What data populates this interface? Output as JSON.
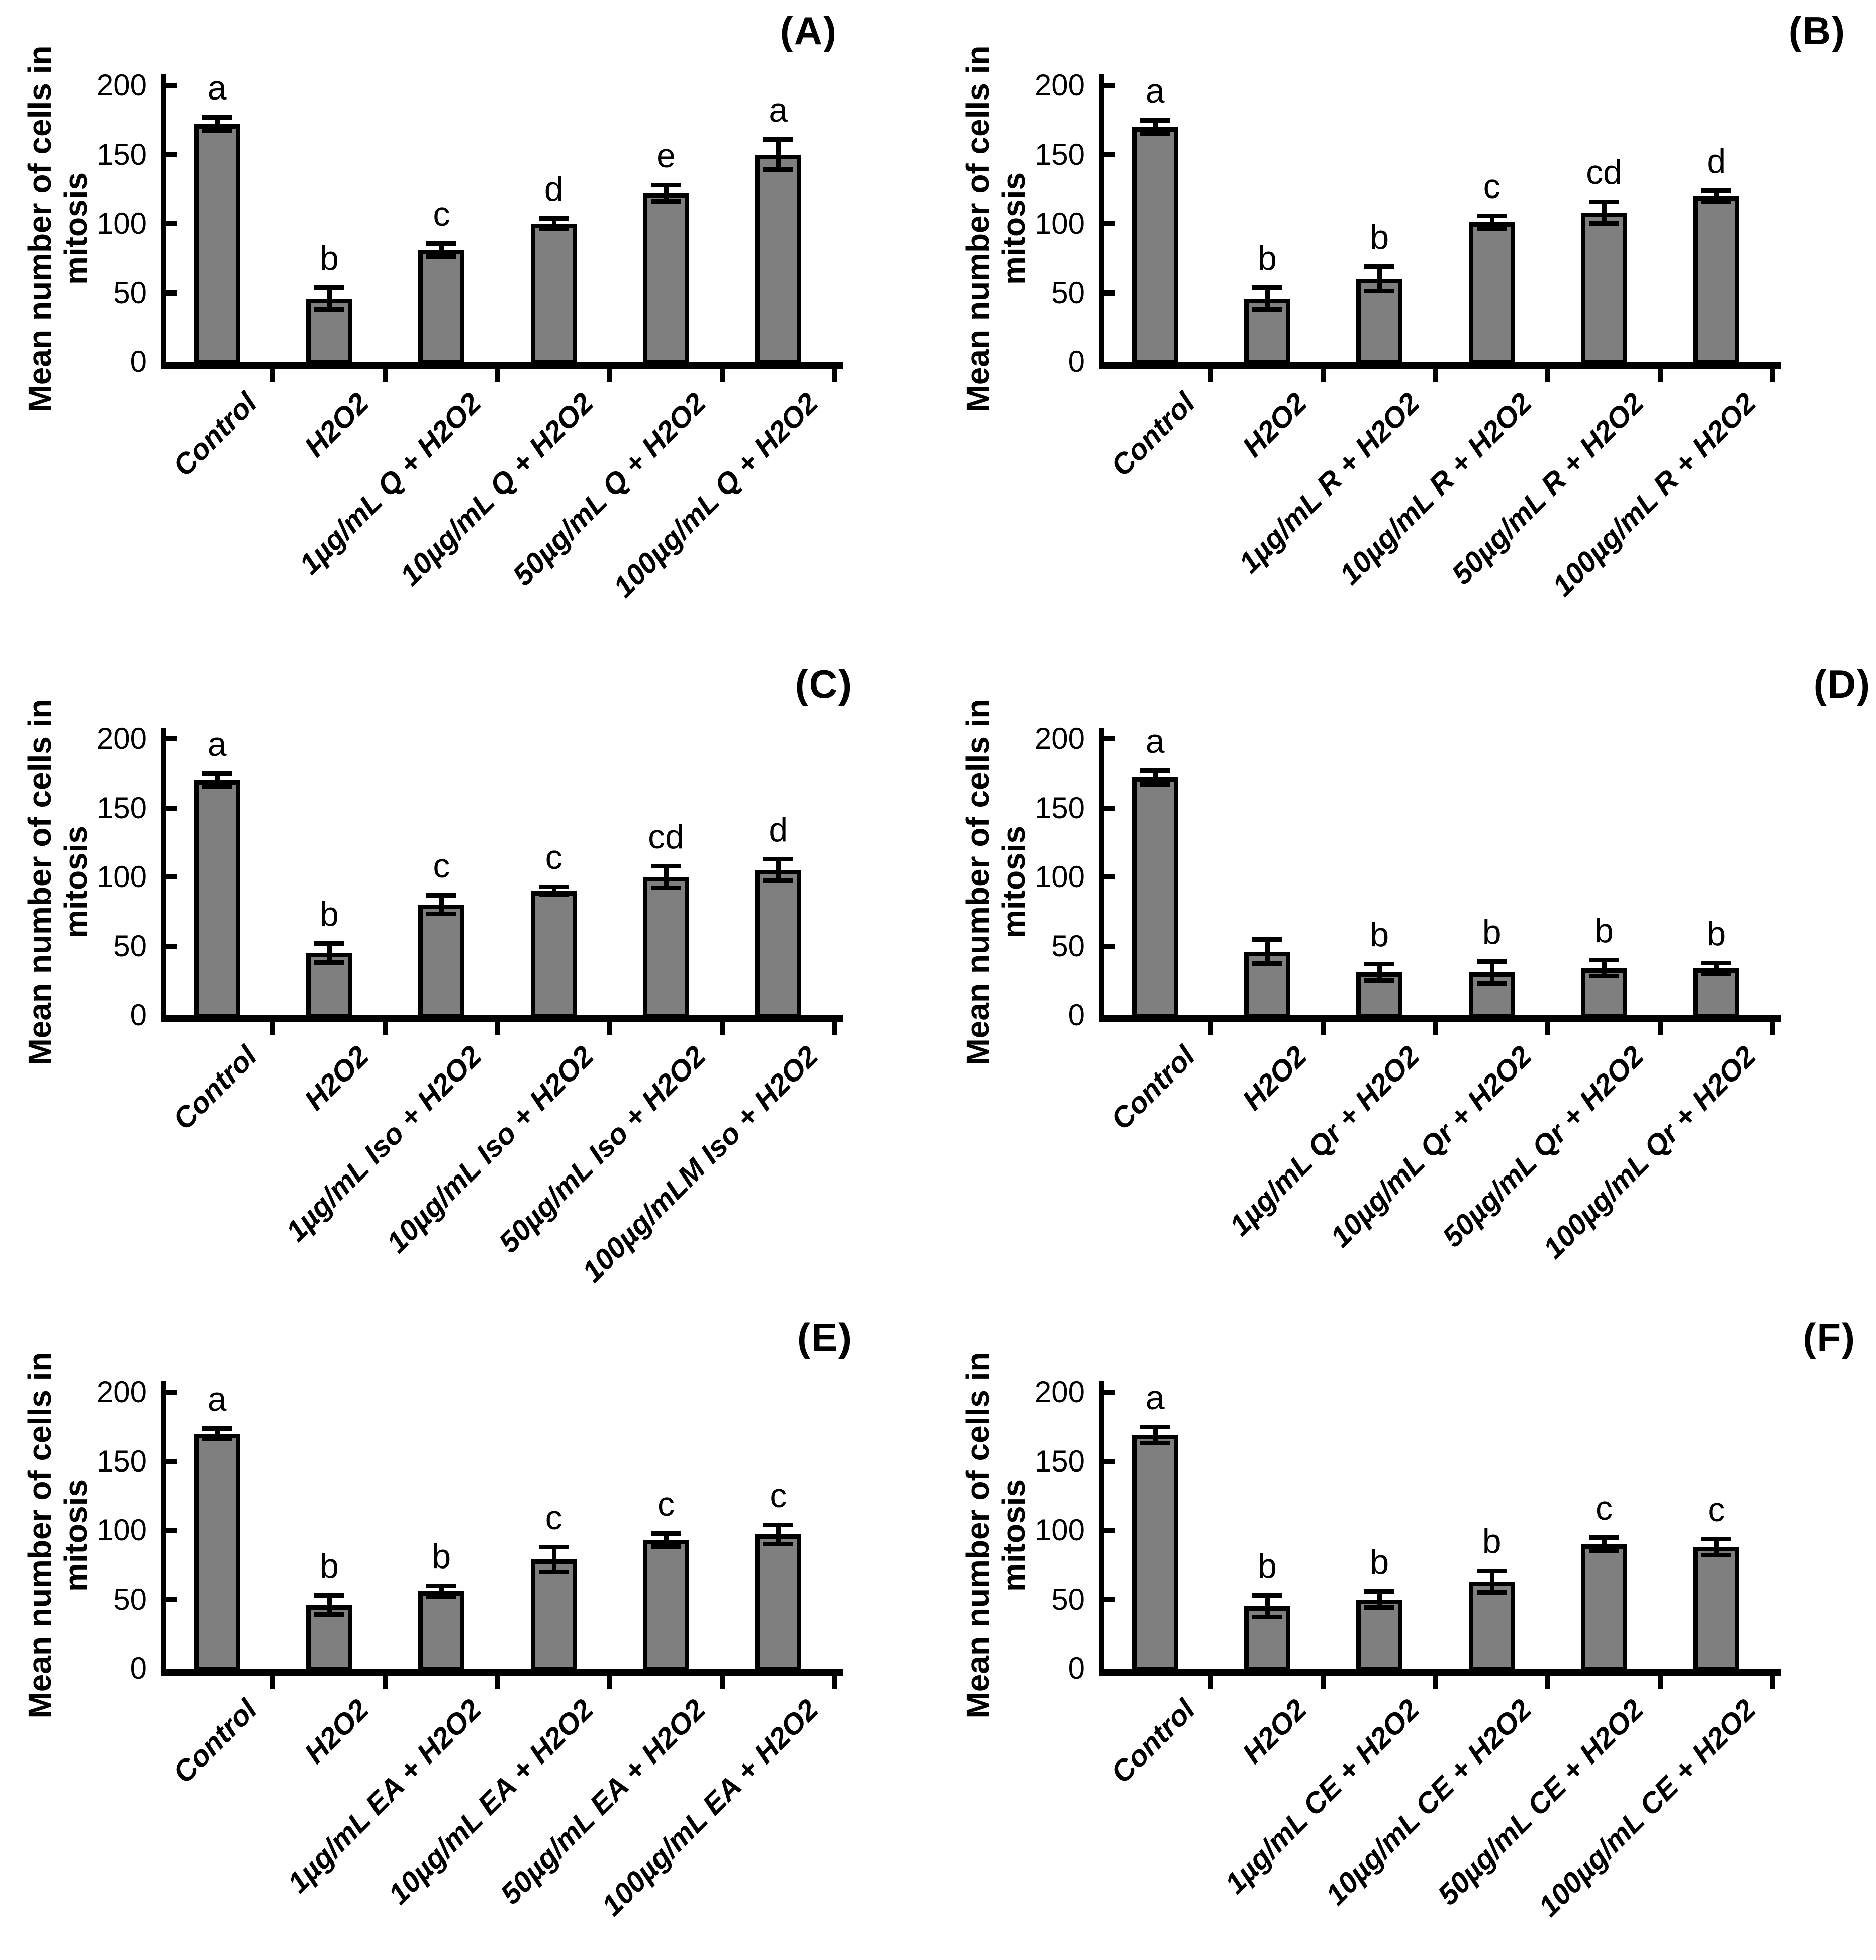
{
  "figure": {
    "background": "#ffffff",
    "text_color": "#000000",
    "bar_fill_color": "#7f7f7f",
    "bar_outline_color": "#000000",
    "panels_order": [
      "(A)",
      "(B)",
      "(C)",
      "(D)",
      "(E)",
      "(F)"
    ]
  },
  "chart_data": [
    {
      "panel": "(A)",
      "type": "bar",
      "title": "",
      "ylabel_line1": "Mean number of cells in",
      "ylabel_line2": "mitosis",
      "xlabel": "",
      "ylim": [
        0,
        200
      ],
      "yticks": [
        0,
        50,
        100,
        150,
        200
      ],
      "grid": false,
      "legend": "none",
      "bar_color": "#7f7f7f",
      "categories": [
        "Control",
        "H2O2",
        "1µg/mL Q + H2O2",
        "10µg/mL Q + H2O2",
        "50µg/mL Q + H2O2",
        "100µg/mL Q + H2O2"
      ],
      "values": [
        172,
        46,
        81,
        100,
        122,
        150
      ],
      "errors": [
        5,
        8,
        5,
        4,
        6,
        11
      ],
      "letters": [
        "a",
        "b",
        "c",
        "d",
        "e",
        "a"
      ]
    },
    {
      "panel": "(B)",
      "type": "bar",
      "title": "",
      "ylabel_line1": "Mean number of cells in",
      "ylabel_line2": "mitosis",
      "xlabel": "",
      "ylim": [
        0,
        200
      ],
      "yticks": [
        0,
        50,
        100,
        150,
        200
      ],
      "grid": false,
      "legend": "none",
      "bar_color": "#7f7f7f",
      "categories": [
        "Control",
        "H2O2",
        "1µg/mL R + H2O2",
        "10µg/mL R + H2O2",
        "50µg/mL R + H2O2",
        "100µg/mL R + H2O2"
      ],
      "values": [
        170,
        46,
        60,
        101,
        108,
        120
      ],
      "errors": [
        5,
        8,
        9,
        5,
        8,
        4
      ],
      "letters": [
        "a",
        "b",
        "b",
        "c",
        "cd",
        "d"
      ]
    },
    {
      "panel": "(C)",
      "type": "bar",
      "title": "",
      "ylabel_line1": "Mean number of cells in",
      "ylabel_line2": "mitosis",
      "xlabel": "",
      "ylim": [
        0,
        200
      ],
      "yticks": [
        0,
        50,
        100,
        150,
        200
      ],
      "grid": false,
      "legend": "none",
      "bar_color": "#7f7f7f",
      "categories": [
        "Control",
        "H2O2",
        "1µg/mL Iso + H2O2",
        "10µg/mL Iso + H2O2",
        "50µg/mL Iso + H2O2",
        "100µg/mLM Iso + H2O2"
      ],
      "values": [
        170,
        45,
        80,
        90,
        100,
        105
      ],
      "errors": [
        5,
        7,
        7,
        3,
        8,
        8
      ],
      "letters": [
        "a",
        "b",
        "c",
        "c",
        "cd",
        "d"
      ]
    },
    {
      "panel": "(D)",
      "type": "bar",
      "title": "",
      "ylabel_line1": "Mean number of cells in",
      "ylabel_line2": "mitosis",
      "xlabel": "",
      "ylim": [
        0,
        200
      ],
      "yticks": [
        0,
        50,
        100,
        150,
        200
      ],
      "grid": false,
      "legend": "none",
      "bar_color": "#7f7f7f",
      "categories": [
        "Control",
        "H2O2",
        "1µg/mL Qr + H2O2",
        "10µg/mL Qr + H2O2",
        "50µg/mL Qr + H2O2",
        "100µg/mL Qr + H2O2"
      ],
      "values": [
        172,
        46,
        31,
        31,
        34,
        34
      ],
      "errors": [
        5,
        9,
        6,
        8,
        6,
        4
      ],
      "letters": [
        "a",
        "",
        "b",
        "b",
        "b",
        "b"
      ]
    },
    {
      "panel": "(E)",
      "type": "bar",
      "title": "",
      "ylabel_line1": "Mean number of cells in",
      "ylabel_line2": "mitosis",
      "xlabel": "",
      "ylim": [
        0,
        200
      ],
      "yticks": [
        0,
        50,
        100,
        150,
        200
      ],
      "grid": false,
      "legend": "none",
      "bar_color": "#7f7f7f",
      "categories": [
        "Control",
        "H2O2",
        "1µg/mL EA + H2O2",
        "10µg/mL EA + H2O2",
        "50µg/mL EA + H2O2",
        "100µg/mL EA + H2O2"
      ],
      "values": [
        170,
        46,
        56,
        79,
        93,
        97
      ],
      "errors": [
        4,
        7,
        4,
        9,
        5,
        7
      ],
      "letters": [
        "a",
        "b",
        "b",
        "c",
        "c",
        "c"
      ]
    },
    {
      "panel": "(F)",
      "type": "bar",
      "title": "",
      "ylabel_line1": "Mean number of cells in",
      "ylabel_line2": "mitosis",
      "xlabel": "",
      "ylim": [
        0,
        200
      ],
      "yticks": [
        0,
        50,
        100,
        150,
        200
      ],
      "grid": false,
      "legend": "none",
      "bar_color": "#7f7f7f",
      "categories": [
        "Control",
        "H2O2",
        "1µg/mL CE + H2O2",
        "10µg/mL CE + H2O2",
        "50µg/mL CE + H2O2",
        "100µg/mL CE + H2O2"
      ],
      "values": [
        169,
        45,
        50,
        63,
        90,
        88
      ],
      "errors": [
        6,
        8,
        6,
        8,
        5,
        6
      ],
      "letters": [
        "a",
        "b",
        "b",
        "b",
        "c",
        "c"
      ]
    }
  ]
}
